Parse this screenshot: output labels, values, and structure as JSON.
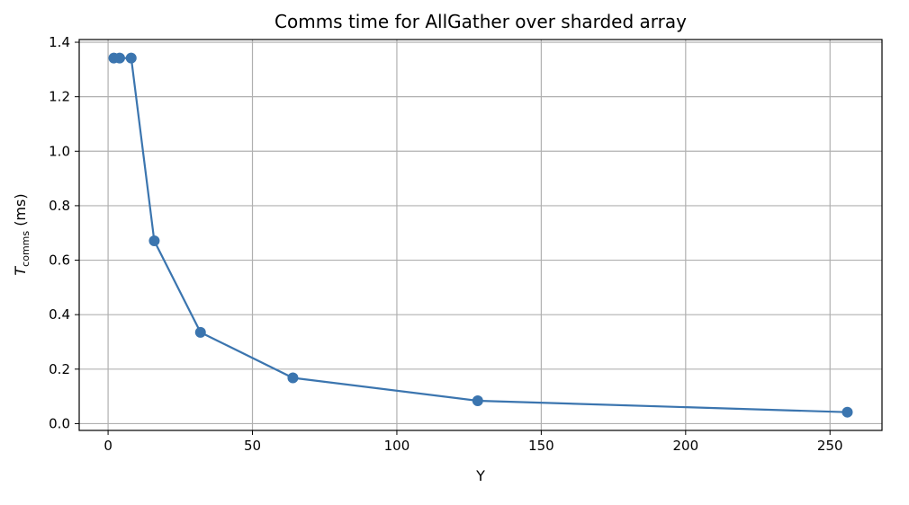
{
  "chart_data": {
    "type": "line",
    "title": "Comms time for AllGather over sharded array",
    "xlabel": "Y",
    "ylabel": {
      "symbol": "T",
      "subscript": "comms",
      "unit": " (ms)"
    },
    "xlim": [
      -10,
      268
    ],
    "ylim": [
      -0.025,
      1.41
    ],
    "xticks": [
      0,
      50,
      100,
      150,
      200,
      250
    ],
    "yticks": [
      0.0,
      0.2,
      0.4,
      0.6,
      0.8,
      1.0,
      1.2,
      1.4
    ],
    "grid": true,
    "marker": "circle",
    "color": "#3b75af",
    "series": [
      {
        "x": [
          2,
          4,
          8,
          16,
          32,
          64,
          128,
          256
        ],
        "y": [
          1.342,
          1.342,
          1.342,
          0.671,
          0.335,
          0.168,
          0.084,
          0.042
        ]
      }
    ]
  }
}
